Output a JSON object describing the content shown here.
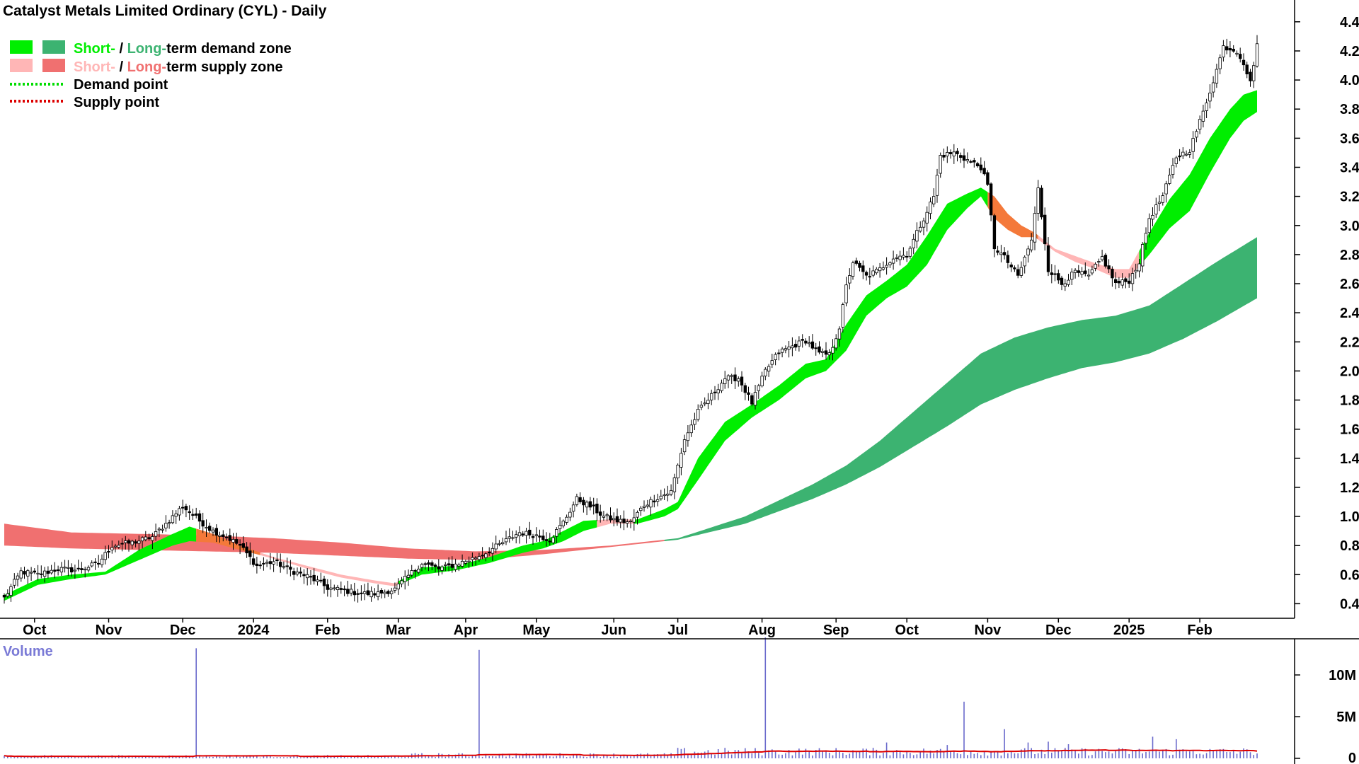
{
  "chart_data": {
    "type": "line",
    "title": "Catalyst Metals Limited Ordinary (CYL) - Daily",
    "price_axis": {
      "ylim": [
        0.3,
        4.55
      ],
      "ticks": [
        "0.4",
        "0.6",
        "0.8",
        "1.0",
        "1.2",
        "1.4",
        "1.6",
        "1.8",
        "2.0",
        "2.2",
        "2.4",
        "2.6",
        "2.8",
        "3.0",
        "3.2",
        "3.4",
        "3.6",
        "3.8",
        "4.0",
        "4.2",
        "4.4"
      ]
    },
    "volume_axis": {
      "label": "Volume",
      "ylim": [
        0,
        14000000
      ],
      "ticks": [
        {
          "v": 10000000,
          "label": "10M"
        },
        {
          "v": 5000000,
          "label": "5M"
        },
        {
          "v": 0,
          "label": "0"
        }
      ]
    },
    "x_ticks": [
      {
        "label": "Oct",
        "t": 9
      },
      {
        "label": "Nov",
        "t": 31
      },
      {
        "label": "Dec",
        "t": 53
      },
      {
        "label": "2024",
        "t": 74
      },
      {
        "label": "Feb",
        "t": 96
      },
      {
        "label": "Mar",
        "t": 117
      },
      {
        "label": "Apr",
        "t": 137
      },
      {
        "label": "May",
        "t": 158
      },
      {
        "label": "Jun",
        "t": 181
      },
      {
        "label": "Jul",
        "t": 200
      },
      {
        "label": "Aug",
        "t": 225
      },
      {
        "label": "Sep",
        "t": 247
      },
      {
        "label": "Oct",
        "t": 268
      },
      {
        "label": "Nov",
        "t": 292
      },
      {
        "label": "Dec",
        "t": 313
      },
      {
        "label": "2025",
        "t": 334
      },
      {
        "label": "Feb",
        "t": 355
      }
    ],
    "legend": [
      {
        "text_a": "Short-",
        "text_b": " / ",
        "text_c": "Long-",
        "text_d": "term demand zone",
        "colors": [
          "#00ee00",
          "#3cb371"
        ]
      },
      {
        "text_a": "Short-",
        "text_b": " / ",
        "text_c": "Long-",
        "text_d": "term supply zone",
        "colors": [
          "#ffb6b6",
          "#f07070"
        ]
      },
      {
        "text": "Demand point",
        "color": "#00dd00"
      },
      {
        "text": "Supply point",
        "color": "#dd0000"
      }
    ],
    "close_anchors": [
      [
        0,
        0.44
      ],
      [
        5,
        0.62
      ],
      [
        10,
        0.6
      ],
      [
        16,
        0.64
      ],
      [
        22,
        0.63
      ],
      [
        28,
        0.68
      ],
      [
        32,
        0.8
      ],
      [
        38,
        0.82
      ],
      [
        44,
        0.86
      ],
      [
        48,
        0.95
      ],
      [
        53,
        1.07
      ],
      [
        58,
        0.97
      ],
      [
        62,
        0.9
      ],
      [
        66,
        0.86
      ],
      [
        70,
        0.8
      ],
      [
        75,
        0.66
      ],
      [
        80,
        0.69
      ],
      [
        86,
        0.62
      ],
      [
        91,
        0.58
      ],
      [
        96,
        0.51
      ],
      [
        101,
        0.49
      ],
      [
        106,
        0.47
      ],
      [
        111,
        0.47
      ],
      [
        116,
        0.5
      ],
      [
        119,
        0.57
      ],
      [
        124,
        0.68
      ],
      [
        129,
        0.64
      ],
      [
        134,
        0.67
      ],
      [
        138,
        0.7
      ],
      [
        143,
        0.75
      ],
      [
        148,
        0.82
      ],
      [
        153,
        0.89
      ],
      [
        158,
        0.87
      ],
      [
        162,
        0.84
      ],
      [
        166,
        0.96
      ],
      [
        170,
        1.12
      ],
      [
        174,
        1.07
      ],
      [
        178,
        1.0
      ],
      [
        182,
        0.97
      ],
      [
        186,
        0.96
      ],
      [
        190,
        1.08
      ],
      [
        194,
        1.13
      ],
      [
        198,
        1.17
      ],
      [
        202,
        1.53
      ],
      [
        206,
        1.72
      ],
      [
        210,
        1.83
      ],
      [
        214,
        1.95
      ],
      [
        218,
        1.95
      ],
      [
        222,
        1.78
      ],
      [
        226,
        2.0
      ],
      [
        230,
        2.13
      ],
      [
        234,
        2.17
      ],
      [
        238,
        2.21
      ],
      [
        242,
        2.12
      ],
      [
        245,
        2.11
      ],
      [
        248,
        2.3
      ],
      [
        250,
        2.58
      ],
      [
        252,
        2.75
      ],
      [
        256,
        2.65
      ],
      [
        260,
        2.7
      ],
      [
        264,
        2.78
      ],
      [
        268,
        2.8
      ],
      [
        272,
        3.0
      ],
      [
        276,
        3.2
      ],
      [
        278,
        3.48
      ],
      [
        282,
        3.5
      ],
      [
        286,
        3.45
      ],
      [
        290,
        3.4
      ],
      [
        292,
        3.27
      ],
      [
        294,
        2.85
      ],
      [
        297,
        2.78
      ],
      [
        301,
        2.65
      ],
      [
        305,
        2.9
      ],
      [
        307,
        3.25
      ],
      [
        310,
        2.7
      ],
      [
        314,
        2.6
      ],
      [
        318,
        2.68
      ],
      [
        322,
        2.65
      ],
      [
        326,
        2.78
      ],
      [
        330,
        2.6
      ],
      [
        334,
        2.62
      ],
      [
        337,
        2.75
      ],
      [
        340,
        3.05
      ],
      [
        344,
        3.2
      ],
      [
        348,
        3.47
      ],
      [
        352,
        3.52
      ],
      [
        356,
        3.78
      ],
      [
        360,
        4.07
      ],
      [
        362,
        4.23
      ],
      [
        366,
        4.2
      ],
      [
        368,
        4.12
      ],
      [
        370,
        3.98
      ],
      [
        372,
        4.25
      ]
    ],
    "short_upper_anchors": [
      [
        0,
        0.46
      ],
      [
        10,
        0.57
      ],
      [
        20,
        0.6
      ],
      [
        30,
        0.62
      ],
      [
        40,
        0.77
      ],
      [
        50,
        0.88
      ],
      [
        55,
        0.93
      ],
      [
        62,
        0.88
      ],
      [
        70,
        0.8
      ],
      [
        80,
        0.72
      ],
      [
        90,
        0.66
      ],
      [
        100,
        0.6
      ],
      [
        110,
        0.56
      ],
      [
        116,
        0.54
      ],
      [
        124,
        0.65
      ],
      [
        134,
        0.66
      ],
      [
        144,
        0.72
      ],
      [
        154,
        0.8
      ],
      [
        160,
        0.83
      ],
      [
        166,
        0.9
      ],
      [
        172,
        0.97
      ],
      [
        180,
        0.98
      ],
      [
        188,
        0.98
      ],
      [
        196,
        1.05
      ],
      [
        200,
        1.1
      ],
      [
        206,
        1.4
      ],
      [
        214,
        1.65
      ],
      [
        222,
        1.77
      ],
      [
        230,
        1.9
      ],
      [
        238,
        2.05
      ],
      [
        244,
        2.08
      ],
      [
        250,
        2.32
      ],
      [
        256,
        2.52
      ],
      [
        262,
        2.62
      ],
      [
        268,
        2.73
      ],
      [
        274,
        2.93
      ],
      [
        280,
        3.15
      ],
      [
        286,
        3.22
      ],
      [
        290,
        3.26
      ],
      [
        294,
        3.2
      ],
      [
        298,
        3.08
      ],
      [
        302,
        3.0
      ],
      [
        306,
        2.95
      ],
      [
        312,
        2.84
      ],
      [
        318,
        2.79
      ],
      [
        324,
        2.74
      ],
      [
        330,
        2.7
      ],
      [
        334,
        2.7
      ],
      [
        340,
        2.95
      ],
      [
        346,
        3.18
      ],
      [
        352,
        3.35
      ],
      [
        358,
        3.6
      ],
      [
        364,
        3.8
      ],
      [
        368,
        3.9
      ],
      [
        372,
        3.93
      ]
    ],
    "short_lower_anchors": [
      [
        0,
        0.42
      ],
      [
        10,
        0.53
      ],
      [
        20,
        0.57
      ],
      [
        30,
        0.6
      ],
      [
        40,
        0.7
      ],
      [
        50,
        0.8
      ],
      [
        55,
        0.83
      ],
      [
        62,
        0.82
      ],
      [
        70,
        0.77
      ],
      [
        80,
        0.71
      ],
      [
        90,
        0.64
      ],
      [
        100,
        0.58
      ],
      [
        110,
        0.54
      ],
      [
        116,
        0.52
      ],
      [
        124,
        0.6
      ],
      [
        134,
        0.63
      ],
      [
        144,
        0.68
      ],
      [
        154,
        0.75
      ],
      [
        160,
        0.78
      ],
      [
        166,
        0.83
      ],
      [
        172,
        0.9
      ],
      [
        180,
        0.95
      ],
      [
        188,
        0.95
      ],
      [
        196,
        1.0
      ],
      [
        200,
        1.05
      ],
      [
        206,
        1.25
      ],
      [
        214,
        1.52
      ],
      [
        222,
        1.68
      ],
      [
        230,
        1.8
      ],
      [
        238,
        1.95
      ],
      [
        244,
        2.0
      ],
      [
        250,
        2.14
      ],
      [
        256,
        2.38
      ],
      [
        262,
        2.5
      ],
      [
        268,
        2.58
      ],
      [
        274,
        2.73
      ],
      [
        280,
        2.97
      ],
      [
        286,
        3.12
      ],
      [
        290,
        3.2
      ],
      [
        294,
        3.05
      ],
      [
        298,
        2.97
      ],
      [
        302,
        2.92
      ],
      [
        306,
        2.92
      ],
      [
        312,
        2.82
      ],
      [
        318,
        2.75
      ],
      [
        324,
        2.7
      ],
      [
        330,
        2.64
      ],
      [
        334,
        2.64
      ],
      [
        340,
        2.8
      ],
      [
        346,
        2.98
      ],
      [
        352,
        3.1
      ],
      [
        358,
        3.36
      ],
      [
        364,
        3.6
      ],
      [
        368,
        3.72
      ],
      [
        372,
        3.78
      ]
    ],
    "long_upper_anchors": [
      [
        0,
        0.95
      ],
      [
        20,
        0.89
      ],
      [
        40,
        0.88
      ],
      [
        60,
        0.87
      ],
      [
        80,
        0.85
      ],
      [
        100,
        0.82
      ],
      [
        120,
        0.78
      ],
      [
        140,
        0.76
      ],
      [
        160,
        0.77
      ],
      [
        180,
        0.8
      ],
      [
        200,
        0.85
      ],
      [
        220,
        1.0
      ],
      [
        240,
        1.22
      ],
      [
        250,
        1.35
      ],
      [
        260,
        1.52
      ],
      [
        270,
        1.72
      ],
      [
        280,
        1.92
      ],
      [
        290,
        2.12
      ],
      [
        300,
        2.23
      ],
      [
        310,
        2.3
      ],
      [
        320,
        2.35
      ],
      [
        330,
        2.38
      ],
      [
        340,
        2.45
      ],
      [
        350,
        2.6
      ],
      [
        360,
        2.75
      ],
      [
        372,
        2.92
      ]
    ],
    "long_lower_anchors": [
      [
        0,
        0.8
      ],
      [
        20,
        0.78
      ],
      [
        40,
        0.77
      ],
      [
        60,
        0.76
      ],
      [
        80,
        0.75
      ],
      [
        100,
        0.73
      ],
      [
        120,
        0.71
      ],
      [
        140,
        0.7
      ],
      [
        160,
        0.74
      ],
      [
        180,
        0.79
      ],
      [
        200,
        0.84
      ],
      [
        220,
        0.95
      ],
      [
        240,
        1.12
      ],
      [
        250,
        1.22
      ],
      [
        260,
        1.34
      ],
      [
        270,
        1.48
      ],
      [
        280,
        1.62
      ],
      [
        290,
        1.77
      ],
      [
        300,
        1.87
      ],
      [
        310,
        1.95
      ],
      [
        320,
        2.02
      ],
      [
        330,
        2.06
      ],
      [
        340,
        2.12
      ],
      [
        350,
        2.22
      ],
      [
        360,
        2.34
      ],
      [
        372,
        2.5
      ]
    ],
    "volume_spikes": [
      [
        57,
        13200000
      ],
      [
        141,
        13000000
      ],
      [
        226,
        14500000
      ],
      [
        285,
        6800000
      ],
      [
        297,
        3500000
      ],
      [
        262,
        1900000
      ],
      [
        348,
        2300000
      ],
      [
        341,
        2600000
      ],
      [
        310,
        2000000
      ],
      [
        316,
        1700000
      ],
      [
        304,
        1900000
      ],
      [
        280,
        1600000
      ]
    ],
    "colors": {
      "short_demand": "#00ee00",
      "long_demand": "#3cb371",
      "short_supply": "#ffb6b6",
      "long_supply": "#f07070",
      "overlap_supply": "#f4793a",
      "volume": "#6b6bcc",
      "volume_avg": "#dd0000",
      "candle": "#000000"
    }
  }
}
